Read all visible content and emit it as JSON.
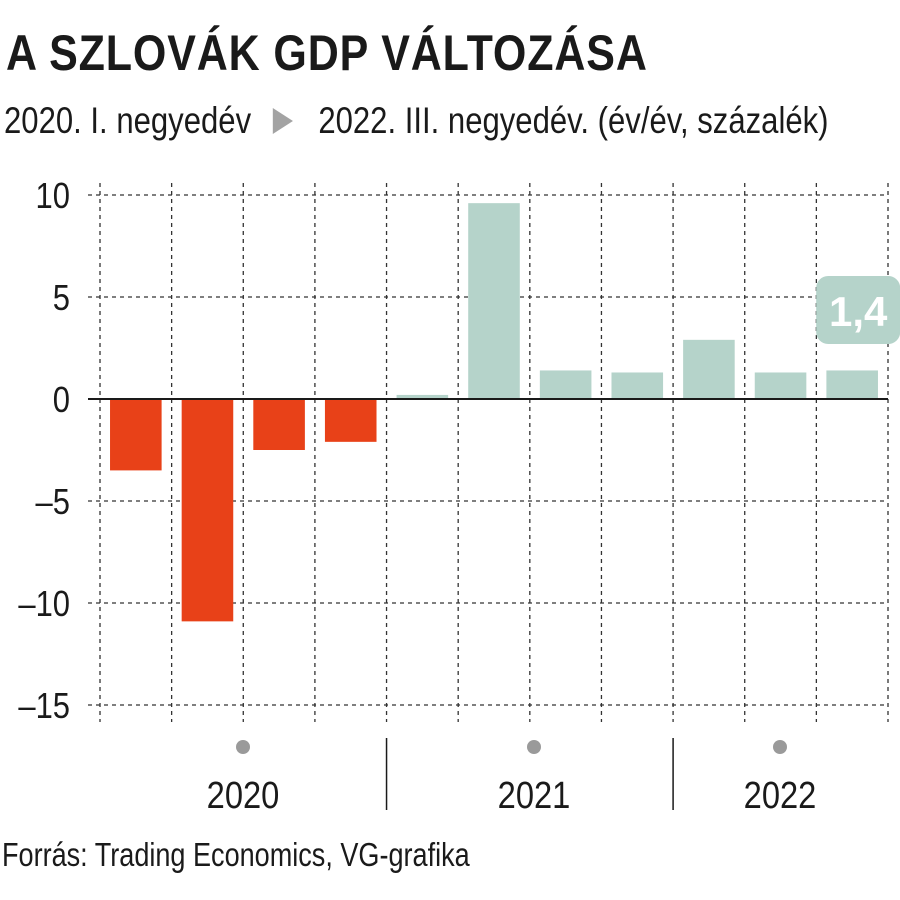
{
  "header": {
    "title": "A SZLOVÁK GDP VÁLTOZÁSA",
    "subtitle_start": "2020. I. negyedév",
    "subtitle_end": "2022. III. negyedév. (év/év, százalék)"
  },
  "footer": {
    "source": "Forrás: Trading Economics, VG-grafika"
  },
  "colors": {
    "negative": "#e84118",
    "positive": "#b5d3ca",
    "label_bg": "#b5d3ca",
    "arrow": "#a3a3a3"
  },
  "chart_data": {
    "type": "bar",
    "categories": [
      "2020 Q1",
      "2020 Q2",
      "2020 Q3",
      "2020 Q4",
      "2021 Q1",
      "2021 Q2",
      "2021 Q3",
      "2021 Q4",
      "2022 Q1",
      "2022 Q2",
      "2022 Q3"
    ],
    "values": [
      -3.5,
      -10.9,
      -2.5,
      -2.1,
      0.2,
      9.6,
      1.4,
      1.3,
      2.9,
      1.3,
      1.4
    ],
    "ylim": [
      -15,
      10
    ],
    "yticks": [
      10,
      5,
      0,
      -5,
      -10,
      -15
    ],
    "ytick_labels": [
      "10",
      "5",
      "0",
      "–5",
      "–10",
      "–15"
    ],
    "year_labels": [
      "2020",
      "2021",
      "2022"
    ],
    "callout": {
      "index": 10,
      "text": "1,4"
    },
    "grid": true
  }
}
